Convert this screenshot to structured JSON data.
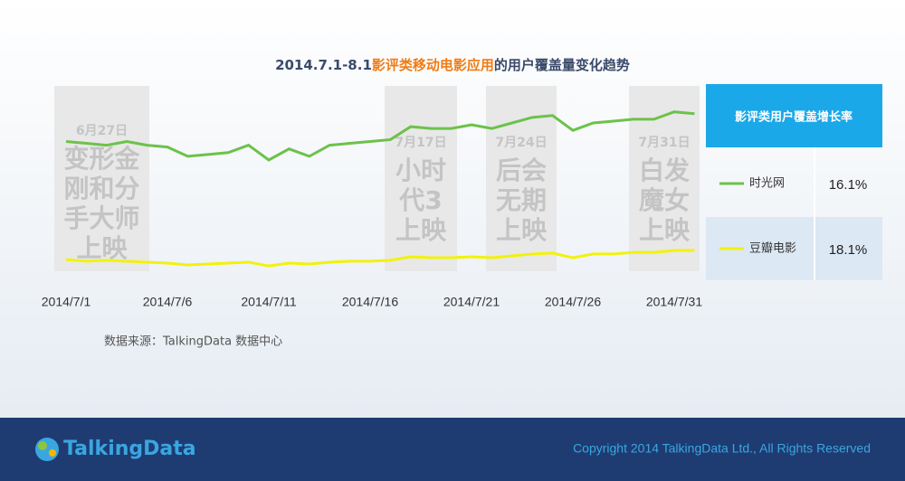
{
  "chart_data": {
    "type": "line",
    "title_prefix": "2014.7.1-8.1",
    "title_highlight": "影评类移动电影应用",
    "title_suffix": "的用户覆盖量变化趋势",
    "categories": [
      "2014/7/1",
      null,
      null,
      null,
      null,
      "2014/7/6",
      null,
      null,
      null,
      null,
      "2014/7/11",
      null,
      null,
      null,
      null,
      "2014/7/16",
      null,
      null,
      null,
      null,
      "2014/7/21",
      null,
      null,
      null,
      null,
      "2014/7/26",
      null,
      null,
      null,
      null,
      "2014/7/31",
      null
    ],
    "ylim": [
      0,
      100
    ],
    "series": [
      {
        "name": "时光网",
        "color": "#6cc24a",
        "growth": 16.1,
        "growth_label": "16.1%",
        "values": [
          70,
          69,
          68,
          70,
          68,
          67,
          62,
          63,
          64,
          68,
          60,
          66,
          62,
          68,
          69,
          70,
          71,
          78,
          77,
          77,
          79,
          77,
          80,
          83,
          84,
          76,
          80,
          81,
          82,
          82,
          86,
          85
        ]
      },
      {
        "name": "豆瓣电影",
        "color": "#f2f20a",
        "growth": 18.1,
        "growth_label": "18.1%",
        "values": [
          6.3,
          5.4,
          5.9,
          5.4,
          4.9,
          4.4,
          3.4,
          3.9,
          4.4,
          4.9,
          2.9,
          4.4,
          3.9,
          4.9,
          5.4,
          5.4,
          5.9,
          7.8,
          7.3,
          7.3,
          7.8,
          7.3,
          8.3,
          9.3,
          9.8,
          7.3,
          9.3,
          9.3,
          10.2,
          10.2,
          11.2,
          11.2
        ]
      }
    ],
    "growth_header": "影评类用户覆盖增长率",
    "annotations": [
      {
        "date": "6月27日",
        "lines": [
          "变形金",
          "刚和分",
          "手大师",
          "上映"
        ]
      },
      {
        "date": "7月17日",
        "lines": [
          "小时",
          "代3",
          "上映"
        ]
      },
      {
        "date": "7月24日",
        "lines": [
          "后会",
          "无期",
          "上映"
        ]
      },
      {
        "date": "7月31日",
        "lines": [
          "白发",
          "魔女",
          "上映"
        ]
      }
    ],
    "source": "数据来源：TalkingData 数据中心"
  },
  "footer": {
    "logo": "TalkingData",
    "copyright": "Copyright 2014 TalkingData Ltd., All Rights Reserved"
  }
}
